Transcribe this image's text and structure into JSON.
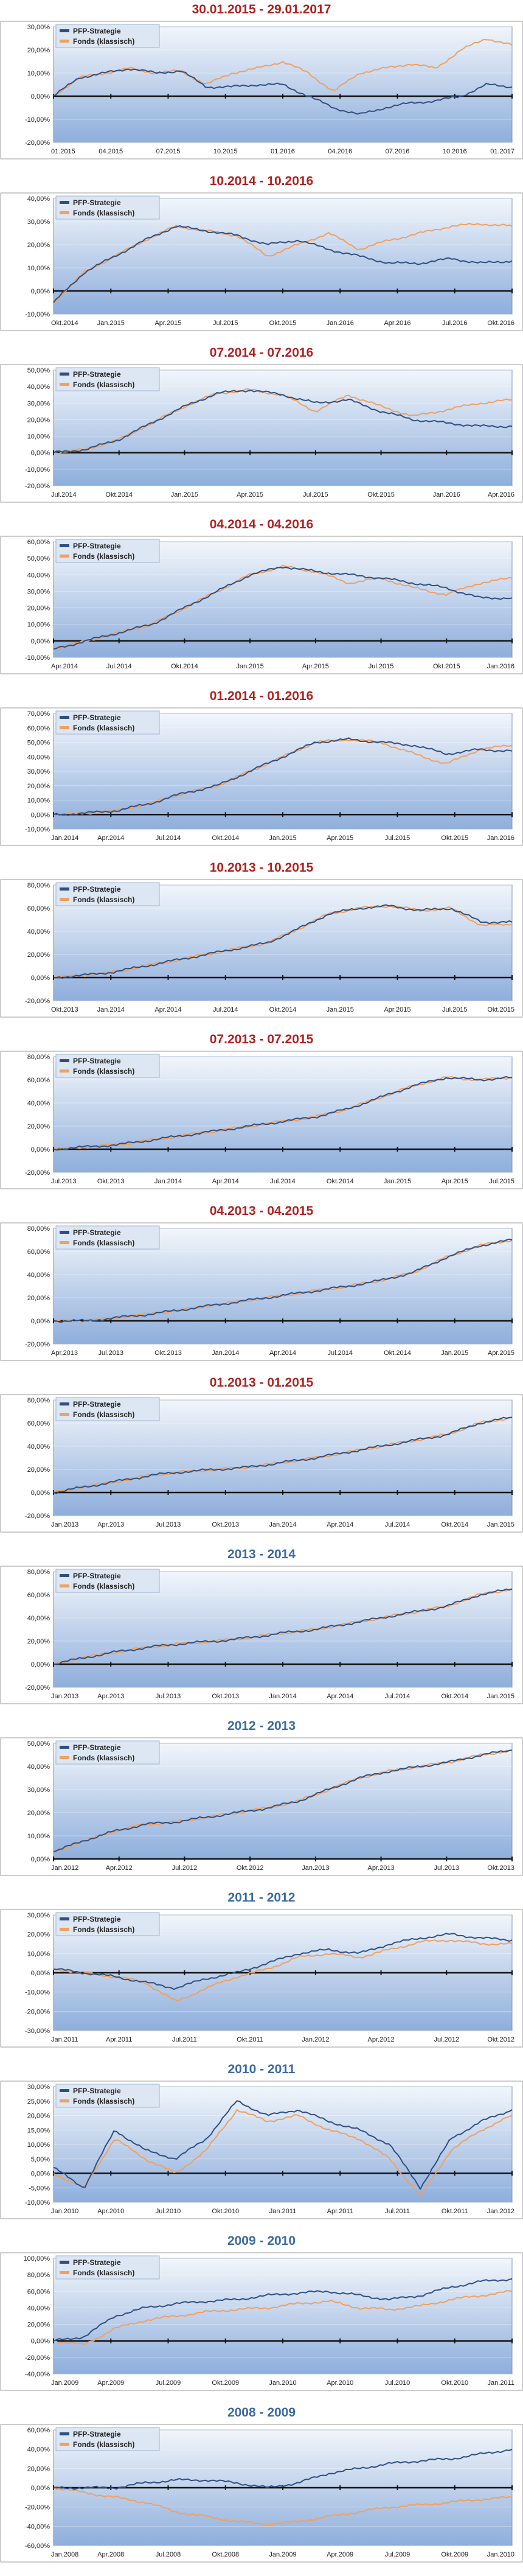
{
  "colors": {
    "strategy": "#2f4f80",
    "fund": "#f0a060",
    "title_red": "#b02020",
    "title_blue": "#3a6aa0",
    "plot_top": "#f2f6fb",
    "plot_bottom": "#8eaedc",
    "baseline": "#111111"
  },
  "chart_data": [
    {
      "type": "line",
      "title": "30.01.2015 - 29.01.2017",
      "title_color": "red",
      "yticks": [
        "30,00%",
        "20,00%",
        "10,00%",
        "0,00%",
        "-10,00%",
        "-20,00%"
      ],
      "ylim": [
        -20,
        30
      ],
      "xticks": [
        "01.2015",
        "04.2015",
        "07.2015",
        "10.2015",
        "01.2016",
        "04.2016",
        "07.2016",
        "10.2016",
        "01.2017"
      ],
      "legend": [
        "PFP-Strategie",
        "Fonds (klassisch)"
      ],
      "series": [
        {
          "name": "PFP-Strategie",
          "values": [
            0,
            8,
            10,
            12,
            10,
            11,
            4,
            4,
            5,
            5,
            0,
            -5,
            -8,
            -5,
            -3,
            -2,
            0,
            5,
            4
          ]
        },
        {
          "name": "Fonds (klassisch)",
          "values": [
            0,
            8,
            10,
            12,
            10,
            11,
            5,
            10,
            12,
            15,
            10,
            2,
            10,
            12,
            14,
            12,
            20,
            25,
            22
          ]
        }
      ]
    },
    {
      "type": "line",
      "title": "10.2014 - 10.2016",
      "title_color": "red",
      "yticks": [
        "40,00%",
        "30,00%",
        "20,00%",
        "10,00%",
        "0,00%",
        "-10,00%"
      ],
      "ylim": [
        -10,
        40
      ],
      "xticks": [
        "Okt.2014",
        "Jan.2015",
        "Apr.2015",
        "Jul.2015",
        "Okt.2015",
        "Jan.2016",
        "Apr.2016",
        "Jul.2016",
        "Okt.2016"
      ],
      "legend": [
        "PFP-Strategie",
        "Fonds (klassisch)"
      ],
      "series": [
        {
          "name": "PFP-Strategie",
          "values": [
            -5,
            8,
            15,
            22,
            28,
            26,
            24,
            20,
            22,
            18,
            15,
            12,
            12,
            14,
            12,
            13
          ]
        },
        {
          "name": "Fonds (klassisch)",
          "values": [
            -5,
            8,
            15,
            22,
            28,
            26,
            24,
            15,
            20,
            25,
            18,
            22,
            25,
            28,
            29,
            28
          ]
        }
      ]
    },
    {
      "type": "line",
      "title": "07.2014 - 07.2016",
      "title_color": "red",
      "yticks": [
        "50,00%",
        "40,00%",
        "30,00%",
        "20,00%",
        "10,00%",
        "0,00%",
        "-10,00%",
        "-20,00%"
      ],
      "ylim": [
        -20,
        50
      ],
      "xticks": [
        "Jul.2014",
        "Okt.2014",
        "Jan.2015",
        "Apr.2015",
        "Jul.2015",
        "Okt.2015",
        "Jan.2016",
        "Apr.2016"
      ],
      "legend": [
        "PFP-Strategie",
        "Fonds (klassisch)"
      ],
      "series": [
        {
          "name": "PFP-Strategie",
          "values": [
            0,
            2,
            8,
            18,
            28,
            36,
            38,
            35,
            30,
            32,
            25,
            20,
            18,
            16,
            16
          ]
        },
        {
          "name": "Fonds (klassisch)",
          "values": [
            0,
            2,
            8,
            18,
            28,
            36,
            38,
            35,
            25,
            35,
            28,
            22,
            26,
            30,
            32
          ]
        }
      ]
    },
    {
      "type": "line",
      "title": "04.2014 - 04.2016",
      "title_color": "red",
      "yticks": [
        "60,00%",
        "50,00%",
        "40,00%",
        "30,00%",
        "20,00%",
        "10,00%",
        "0,00%",
        "-10,00%"
      ],
      "ylim": [
        -10,
        60
      ],
      "xticks": [
        "Apr.2014",
        "Jul.2014",
        "Okt.2014",
        "Jan.2015",
        "Apr.2015",
        "Jul.2015",
        "Okt.2015",
        "Jan.2016"
      ],
      "legend": [
        "PFP-Strategie",
        "Fonds (klassisch)"
      ],
      "series": [
        {
          "name": "PFP-Strategie",
          "values": [
            -5,
            0,
            5,
            10,
            20,
            30,
            40,
            45,
            42,
            40,
            38,
            35,
            32,
            26,
            26
          ]
        },
        {
          "name": "Fonds (klassisch)",
          "values": [
            -5,
            0,
            5,
            10,
            20,
            30,
            40,
            45,
            42,
            35,
            38,
            32,
            28,
            35,
            38
          ]
        }
      ]
    },
    {
      "type": "line",
      "title": "01.2014 - 01.2016",
      "title_color": "red",
      "yticks": [
        "70,00%",
        "60,00%",
        "50,00%",
        "40,00%",
        "30,00%",
        "20,00%",
        "10,00%",
        "0,00%",
        "-10,00%"
      ],
      "ylim": [
        -10,
        70
      ],
      "xticks": [
        "Jan.2014",
        "Apr.2014",
        "Jul.2014",
        "Okt.2014",
        "Jan.2015",
        "Apr.2015",
        "Jul.2015",
        "Okt.2015",
        "Jan.2016"
      ],
      "legend": [
        "PFP-Strategie",
        "Fonds (klassisch)"
      ],
      "series": [
        {
          "name": "PFP-Strategie",
          "values": [
            0,
            1,
            3,
            8,
            15,
            20,
            30,
            40,
            50,
            52,
            50,
            48,
            42,
            45,
            44
          ]
        },
        {
          "name": "Fonds (klassisch)",
          "values": [
            0,
            1,
            3,
            8,
            15,
            20,
            30,
            40,
            50,
            52,
            50,
            42,
            35,
            45,
            48
          ]
        }
      ]
    },
    {
      "type": "line",
      "title": "10.2013 - 10.2015",
      "title_color": "red",
      "yticks": [
        "80,00%",
        "60,00%",
        "40,00%",
        "20,00%",
        "0,00%",
        "-20,00%"
      ],
      "ylim": [
        -20,
        80
      ],
      "xticks": [
        "Okt.2013",
        "Jan.2014",
        "Apr.2014",
        "Jul.2014",
        "Okt.2014",
        "Jan.2015",
        "Apr.2015",
        "Jul.2015",
        "Okt.2015"
      ],
      "legend": [
        "PFP-Strategie",
        "Fonds (klassisch)"
      ],
      "series": [
        {
          "name": "PFP-Strategie",
          "values": [
            0,
            2,
            5,
            10,
            15,
            20,
            25,
            30,
            42,
            55,
            60,
            62,
            58,
            60,
            48,
            48
          ]
        },
        {
          "name": "Fonds (klassisch)",
          "values": [
            0,
            2,
            5,
            10,
            15,
            20,
            25,
            30,
            42,
            55,
            60,
            62,
            58,
            60,
            45,
            46
          ]
        }
      ]
    },
    {
      "type": "line",
      "title": "07.2013 - 07.2015",
      "title_color": "red",
      "yticks": [
        "80,00%",
        "60,00%",
        "40,00%",
        "20,00%",
        "0,00%",
        "-20,00%"
      ],
      "ylim": [
        -20,
        80
      ],
      "xticks": [
        "Jul.2013",
        "Okt.2013",
        "Jan.2014",
        "Apr.2014",
        "Jul.2014",
        "Okt.2014",
        "Jan.2015",
        "Apr.2015",
        "Jul.2015"
      ],
      "legend": [
        "PFP-Strategie",
        "Fonds (klassisch)"
      ],
      "series": [
        {
          "name": "PFP-Strategie",
          "values": [
            0,
            2,
            4,
            8,
            12,
            16,
            20,
            24,
            28,
            35,
            45,
            55,
            62,
            60,
            62
          ]
        },
        {
          "name": "Fonds (klassisch)",
          "values": [
            0,
            2,
            4,
            8,
            12,
            16,
            20,
            24,
            28,
            35,
            45,
            55,
            62,
            60,
            62
          ]
        }
      ]
    },
    {
      "type": "line",
      "title": "04.2013 - 04.2015",
      "title_color": "red",
      "yticks": [
        "80,00%",
        "60,00%",
        "40,00%",
        "20,00%",
        "0,00%",
        "-20,00%"
      ],
      "ylim": [
        -20,
        80
      ],
      "xticks": [
        "Apr.2013",
        "Jul.2013",
        "Okt.2013",
        "Jan.2014",
        "Apr.2014",
        "Jul.2014",
        "Okt.2014",
        "Jan.2015",
        "Apr.2015"
      ],
      "legend": [
        "PFP-Strategie",
        "Fonds (klassisch)"
      ],
      "series": [
        {
          "name": "PFP-Strategie",
          "values": [
            0,
            0,
            3,
            6,
            10,
            14,
            18,
            22,
            26,
            30,
            35,
            42,
            55,
            65,
            70
          ]
        },
        {
          "name": "Fonds (klassisch)",
          "values": [
            0,
            0,
            3,
            6,
            10,
            14,
            18,
            22,
            26,
            30,
            35,
            42,
            55,
            65,
            70
          ]
        }
      ]
    },
    {
      "type": "line",
      "title": "01.2013 - 01.2015",
      "title_color": "red",
      "yticks": [
        "80,00%",
        "60,00%",
        "40,00%",
        "20,00%",
        "0,00%",
        "-20,00%"
      ],
      "ylim": [
        -20,
        80
      ],
      "xticks": [
        "Jan.2013",
        "Apr.2013",
        "Jul.2013",
        "Okt.2013",
        "Jan.2014",
        "Apr.2014",
        "Jul.2014",
        "Okt.2014",
        "Jan.2015"
      ],
      "legend": [
        "PFP-Strategie",
        "Fonds (klassisch)"
      ],
      "series": [
        {
          "name": "PFP-Strategie",
          "values": [
            0,
            5,
            10,
            15,
            18,
            20,
            22,
            26,
            30,
            35,
            40,
            45,
            50,
            60,
            65
          ]
        },
        {
          "name": "Fonds (klassisch)",
          "values": [
            0,
            5,
            10,
            15,
            18,
            20,
            22,
            26,
            30,
            35,
            40,
            45,
            50,
            60,
            65
          ]
        }
      ]
    },
    {
      "type": "line",
      "title": "2013 - 2014",
      "title_color": "blue",
      "yticks": [
        "80,00%",
        "60,00%",
        "40,00%",
        "20,00%",
        "0,00%",
        "-20,00%"
      ],
      "ylim": [
        -20,
        80
      ],
      "xticks": [
        "Jan.2013",
        "Apr.2013",
        "Jul.2013",
        "Okt.2013",
        "Jan.2014",
        "Apr.2014",
        "Jul.2014",
        "Okt.2014",
        "Jan.2015"
      ],
      "legend": [
        "PFP-Strategie",
        "Fonds (klassisch)"
      ],
      "series": [
        {
          "name": "PFP-Strategie",
          "values": [
            0,
            6,
            11,
            15,
            18,
            20,
            23,
            27,
            30,
            35,
            40,
            45,
            50,
            60,
            65
          ]
        },
        {
          "name": "Fonds (klassisch)",
          "values": [
            0,
            6,
            11,
            15,
            18,
            20,
            23,
            27,
            30,
            35,
            40,
            45,
            50,
            60,
            65
          ]
        }
      ]
    },
    {
      "type": "line",
      "title": "2012 - 2013",
      "title_color": "blue",
      "yticks": [
        "50,00%",
        "40,00%",
        "30,00%",
        "20,00%",
        "10,00%",
        "0,00%"
      ],
      "ylim": [
        0,
        50
      ],
      "xticks": [
        "Jan.2012",
        "Apr.2012",
        "Jul.2012",
        "Okt.2012",
        "Jan.2013",
        "Apr.2013",
        "Jul.2013",
        "Okt.2013"
      ],
      "legend": [
        "PFP-Strategie",
        "Fonds (klassisch)"
      ],
      "series": [
        {
          "name": "PFP-Strategie",
          "values": [
            3,
            8,
            12,
            15,
            16,
            18,
            20,
            22,
            25,
            30,
            35,
            38,
            40,
            42,
            45,
            47
          ]
        },
        {
          "name": "Fonds (klassisch)",
          "values": [
            3,
            8,
            12,
            15,
            16,
            18,
            20,
            22,
            25,
            30,
            35,
            38,
            40,
            42,
            45,
            47
          ]
        }
      ]
    },
    {
      "type": "line",
      "title": "2011 - 2012",
      "title_color": "blue",
      "yticks": [
        "30,00%",
        "20,00%",
        "10,00%",
        "0,00%",
        "-10,00%",
        "-20,00%",
        "-30,00%"
      ],
      "ylim": [
        -30,
        30
      ],
      "xticks": [
        "Jan.2011",
        "Apr.2011",
        "Jul.2011",
        "Okt.2011",
        "Jan.2012",
        "Apr.2012",
        "Jul.2012",
        "Okt.2012"
      ],
      "legend": [
        "PFP-Strategie",
        "Fonds (klassisch)"
      ],
      "series": [
        {
          "name": "PFP-Strategie",
          "values": [
            2,
            0,
            -2,
            -5,
            -8,
            -3,
            0,
            5,
            10,
            12,
            10,
            15,
            18,
            20,
            18,
            17
          ]
        },
        {
          "name": "Fonds (klassisch)",
          "values": [
            2,
            0,
            -2,
            -5,
            -15,
            -8,
            -2,
            2,
            8,
            10,
            8,
            12,
            16,
            17,
            15,
            15
          ]
        }
      ]
    },
    {
      "type": "line",
      "title": "2010 - 2011",
      "title_color": "blue",
      "yticks": [
        "30,00%",
        "25,00%",
        "20,00%",
        "15,00%",
        "10,00%",
        "5,00%",
        "0,00%",
        "-5,00%",
        "-10,00%"
      ],
      "ylim": [
        -10,
        30
      ],
      "xticks": [
        "Jan.2010",
        "Apr.2010",
        "Jul.2010",
        "Okt.2010",
        "Jan.2011",
        "Apr.2011",
        "Jul.2011",
        "Okt.2011",
        "Jan.2012"
      ],
      "legend": [
        "PFP-Strategie",
        "Fonds (klassisch)"
      ],
      "series": [
        {
          "name": "PFP-Strategie",
          "values": [
            2,
            -5,
            15,
            8,
            5,
            12,
            25,
            20,
            22,
            18,
            15,
            10,
            -5,
            12,
            18,
            22
          ]
        },
        {
          "name": "Fonds (klassisch)",
          "values": [
            0,
            -5,
            12,
            5,
            0,
            8,
            22,
            18,
            20,
            15,
            12,
            5,
            -8,
            8,
            15,
            20
          ]
        }
      ]
    },
    {
      "type": "line",
      "title": "2009 - 2010",
      "title_color": "blue",
      "yticks": [
        "100,00%",
        "80,00%",
        "60,00%",
        "40,00%",
        "20,00%",
        "0,00%",
        "-20,00%",
        "-40,00%"
      ],
      "ylim": [
        -40,
        100
      ],
      "xticks": [
        "Jan.2009",
        "Apr.2009",
        "Jul.2009",
        "Okt.2009",
        "Jan.2010",
        "Apr.2010",
        "Jul.2010",
        "Okt.2010",
        "Jan.2011"
      ],
      "legend": [
        "PFP-Strategie",
        "Fonds (klassisch)"
      ],
      "series": [
        {
          "name": "PFP-Strategie",
          "values": [
            0,
            5,
            30,
            40,
            45,
            48,
            50,
            55,
            58,
            60,
            55,
            50,
            55,
            65,
            72,
            75
          ]
        },
        {
          "name": "Fonds (klassisch)",
          "values": [
            0,
            -5,
            15,
            25,
            30,
            35,
            38,
            40,
            45,
            48,
            40,
            38,
            42,
            50,
            55,
            60
          ]
        }
      ]
    },
    {
      "type": "line",
      "title": "2008 - 2009",
      "title_color": "blue",
      "yticks": [
        "60,00%",
        "40,00%",
        "20,00%",
        "0,00%",
        "-20,00%",
        "-40,00%",
        "-60,00%"
      ],
      "ylim": [
        -60,
        60
      ],
      "xticks": [
        "Jan.2008",
        "Apr.2008",
        "Jul.2008",
        "Okt.2008",
        "Jan.2009",
        "Apr.2009",
        "Jul.2009",
        "Okt.2009",
        "Jan.2010"
      ],
      "legend": [
        "PFP-Strategie",
        "Fonds (klassisch)"
      ],
      "series": [
        {
          "name": "PFP-Strategie",
          "values": [
            0,
            0,
            0,
            5,
            8,
            8,
            5,
            0,
            5,
            15,
            20,
            25,
            28,
            30,
            35,
            40
          ]
        },
        {
          "name": "Fonds (klassisch)",
          "values": [
            0,
            -5,
            -10,
            -15,
            -25,
            -30,
            -35,
            -38,
            -35,
            -30,
            -25,
            -20,
            -18,
            -15,
            -12,
            -10
          ]
        }
      ]
    }
  ]
}
